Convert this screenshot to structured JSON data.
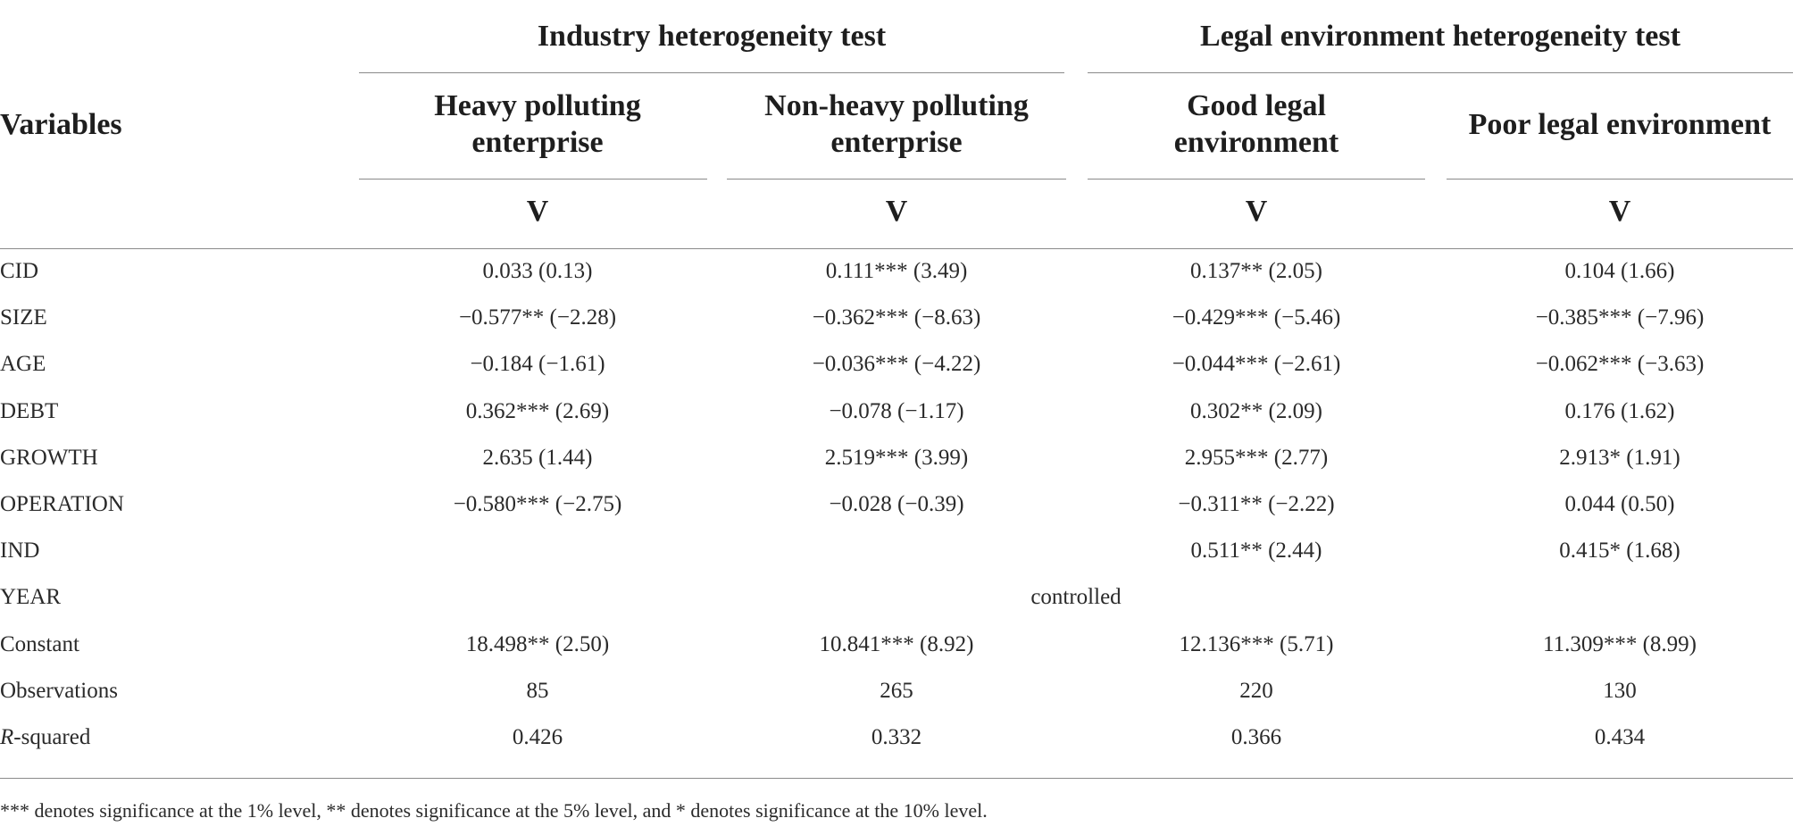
{
  "table": {
    "group_headers": [
      "Industry heterogeneity test",
      "Legal environment heterogeneity test"
    ],
    "variables_header": "Variables",
    "column_headers": [
      [
        "Heavy polluting",
        "enterprise"
      ],
      [
        "Non-heavy polluting",
        "enterprise"
      ],
      [
        "Good legal",
        "environment"
      ],
      [
        "Poor legal environment",
        ""
      ]
    ],
    "dependent_labels": [
      "V",
      "V",
      "V",
      "V"
    ],
    "rows": [
      {
        "label": "CID",
        "cells": [
          "0.033 (0.13)",
          "0.111*** (3.49)",
          "0.137** (2.05)",
          "0.104 (1.66)"
        ]
      },
      {
        "label": "SIZE",
        "cells": [
          "−0.577** (−2.28)",
          "−0.362*** (−8.63)",
          "−0.429*** (−5.46)",
          "−0.385*** (−7.96)"
        ]
      },
      {
        "label": "AGE",
        "cells": [
          "−0.184 (−1.61)",
          "−0.036*** (−4.22)",
          "−0.044*** (−2.61)",
          "−0.062*** (−3.63)"
        ]
      },
      {
        "label": "DEBT",
        "cells": [
          "0.362*** (2.69)",
          "−0.078 (−1.17)",
          "0.302** (2.09)",
          "0.176 (1.62)"
        ]
      },
      {
        "label": "GROWTH",
        "cells": [
          "2.635 (1.44)",
          "2.519*** (3.99)",
          "2.955*** (2.77)",
          "2.913* (1.91)"
        ]
      },
      {
        "label": "OPERATION",
        "cells": [
          "−0.580*** (−2.75)",
          "−0.028 (−0.39)",
          "−0.311** (−2.22)",
          "0.044 (0.50)"
        ]
      },
      {
        "label": "IND",
        "cells": [
          "",
          "",
          "0.511** (2.44)",
          "0.415* (1.68)"
        ]
      },
      {
        "label": "YEAR",
        "cells": [
          "",
          "",
          "",
          ""
        ],
        "span_text": "controlled"
      },
      {
        "label": "Constant",
        "cells": [
          "18.498** (2.50)",
          "10.841*** (8.92)",
          "12.136*** (5.71)",
          "11.309*** (8.99)"
        ]
      },
      {
        "label": "Observations",
        "cells": [
          "85",
          "265",
          "220",
          "130"
        ]
      },
      {
        "label_italic": "R",
        "label": "-squared",
        "cells": [
          "0.426",
          "0.332",
          "0.366",
          "0.434"
        ]
      }
    ],
    "footnote": "*** denotes significance at the 1% level, ** denotes significance at the 5% level, and * denotes significance at the 10% level."
  },
  "colors": {
    "text": "#222222",
    "rule": "#8a8a8a"
  }
}
